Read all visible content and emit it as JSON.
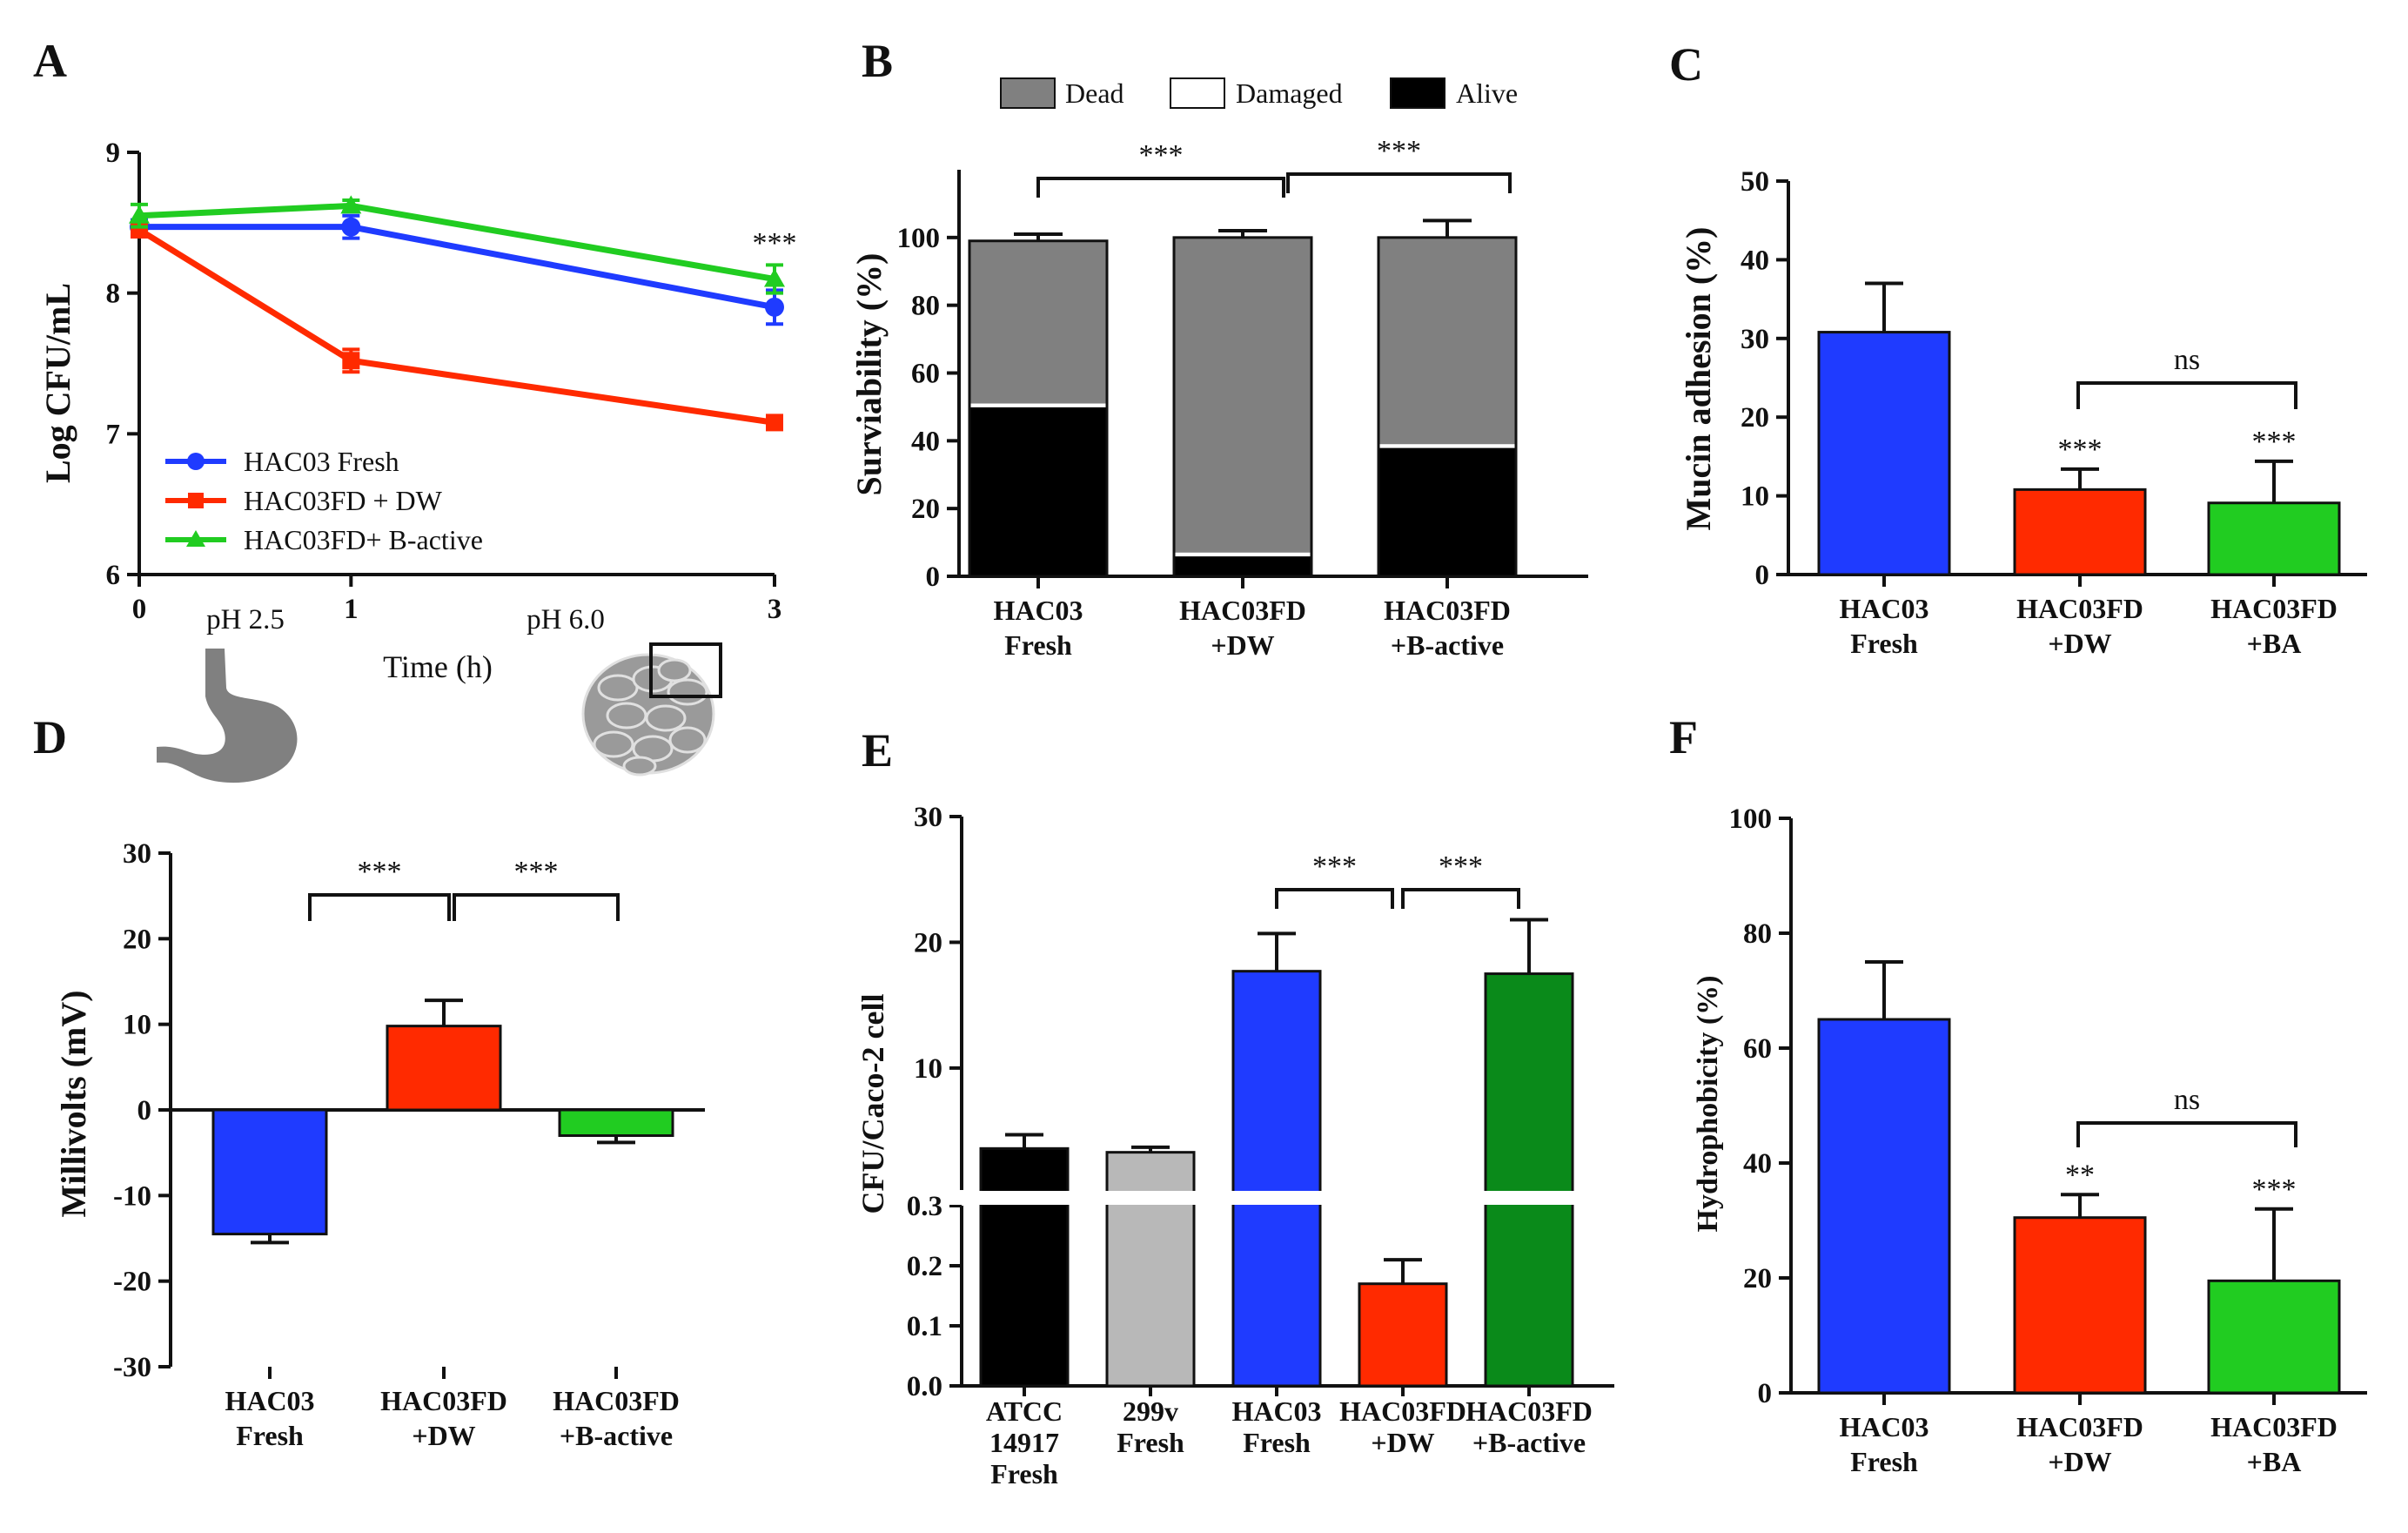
{
  "panels": {
    "A": {
      "letter": "A"
    },
    "B": {
      "letter": "B"
    },
    "C": {
      "letter": "C"
    },
    "D": {
      "letter": "D"
    },
    "E": {
      "letter": "E"
    },
    "F": {
      "letter": "F"
    }
  },
  "colors": {
    "blue": "#1f3bff",
    "red": "#ff2a00",
    "green": "#21cc21",
    "darkgreen": "#0a8a1a",
    "black": "#000000",
    "grey": "#808080",
    "lightgrey": "#b8b8b8",
    "organ": "#808080"
  },
  "chart_data": [
    {
      "id": "A",
      "type": "line",
      "ylabel": "Log CFU/mL",
      "xlabel": "Time (h)",
      "ylim": [
        6,
        9
      ],
      "yticks": [
        "6",
        "7",
        "8",
        "9"
      ],
      "x": [
        0,
        1,
        3
      ],
      "xticks": [
        "0",
        "1",
        "3"
      ],
      "annotations": {
        "ph1": "pH 2.5",
        "ph2": "pH 6.0",
        "sig": "***"
      },
      "series": [
        {
          "name": "HAC03 Fresh",
          "color": "#1f3bff",
          "marker": "circle",
          "values": [
            8.47,
            8.47,
            7.9
          ],
          "err": [
            0.05,
            0.08,
            0.12
          ]
        },
        {
          "name": "HAC03FD + DW",
          "color": "#ff2a00",
          "marker": "square",
          "values": [
            8.45,
            7.52,
            7.08
          ],
          "err": [
            0.05,
            0.08,
            0.03
          ]
        },
        {
          "name": "HAC03FD+ B-active",
          "color": "#21cc21",
          "marker": "triangle",
          "values": [
            8.55,
            8.62,
            8.1
          ],
          "err": [
            0.08,
            0.04,
            0.1
          ]
        }
      ]
    },
    {
      "id": "B",
      "type": "bar",
      "ylabel": "Surviability (%)",
      "ylim": [
        0,
        120
      ],
      "yticks": [
        "0",
        "20",
        "40",
        "60",
        "80",
        "100"
      ],
      "categories": [
        [
          "HAC03",
          "Fresh"
        ],
        [
          "HAC03FD",
          "+DW"
        ],
        [
          "HAC03FD",
          "+B-active"
        ]
      ],
      "legend": [
        "Dead",
        "Damaged",
        "Alive"
      ],
      "series": [
        {
          "name": "Alive",
          "color": "#000000",
          "values": [
            50,
            6,
            38
          ]
        },
        {
          "name": "Damaged",
          "color": "#ffffff",
          "values": [
            1,
            1,
            1
          ]
        },
        {
          "name": "Dead",
          "color": "#808080",
          "values": [
            48,
            93,
            61
          ]
        }
      ],
      "err": [
        2,
        2,
        5
      ],
      "brackets": [
        {
          "from": 0,
          "to": 1,
          "label": "***"
        },
        {
          "from": 1,
          "to": 2,
          "label": "***"
        }
      ]
    },
    {
      "id": "C",
      "type": "bar",
      "ylabel": "Mucin adhesion (%)",
      "ylim": [
        0,
        50
      ],
      "yticks": [
        "0",
        "10",
        "20",
        "30",
        "40",
        "50"
      ],
      "categories": [
        [
          "HAC03",
          "Fresh"
        ],
        [
          "HAC03FD",
          "+DW"
        ],
        [
          "HAC03FD",
          "+BA"
        ]
      ],
      "values": [
        30.8,
        10.8,
        9.1
      ],
      "err": [
        6.2,
        2.6,
        5.3
      ],
      "colors": [
        "#1f3bff",
        "#ff2a00",
        "#21cc21"
      ],
      "stars": [
        "",
        "***",
        "***"
      ],
      "brackets": [
        {
          "from": 1,
          "to": 2,
          "label": "ns"
        }
      ]
    },
    {
      "id": "D",
      "type": "bar",
      "ylabel": "Millivolts (mV)",
      "ylim": [
        -30,
        30
      ],
      "yticks": [
        "-30",
        "-20",
        "-10",
        "0",
        "10",
        "20",
        "30"
      ],
      "categories": [
        [
          "HAC03",
          "Fresh"
        ],
        [
          "HAC03FD",
          "+DW"
        ],
        [
          "HAC03FD",
          "+B-active"
        ]
      ],
      "values": [
        -14.5,
        9.8,
        -3.0
      ],
      "err": [
        1.0,
        3.0,
        0.8
      ],
      "colors": [
        "#1f3bff",
        "#ff2a00",
        "#21cc21"
      ],
      "brackets": [
        {
          "from": 0,
          "to": 1,
          "label": "***"
        },
        {
          "from": 1,
          "to": 2,
          "label": "***"
        }
      ]
    },
    {
      "id": "E",
      "type": "bar",
      "ylabel": "CFU/Caco-2 cell",
      "broken_axis": {
        "lower": [
          0,
          0.3
        ],
        "upper": [
          0.3,
          30
        ]
      },
      "yticks_lower": [
        "0.0",
        "0.1",
        "0.2",
        "0.3"
      ],
      "yticks_upper": [
        "10",
        "20",
        "30"
      ],
      "categories": [
        [
          "ATCC",
          "14917",
          "Fresh"
        ],
        [
          "299v",
          "Fresh"
        ],
        [
          "HAC03",
          "Fresh"
        ],
        [
          "HAC03FD",
          "+DW"
        ],
        [
          "HAC03FD",
          "+B-active"
        ]
      ],
      "values": [
        3.6,
        3.3,
        17.7,
        0.17,
        17.5
      ],
      "err": [
        1.1,
        0.4,
        3.0,
        0.04,
        4.3
      ],
      "colors": [
        "#000000",
        "#b8b8b8",
        "#1f3bff",
        "#ff2a00",
        "#0a8a1a"
      ],
      "brackets": [
        {
          "from": 2,
          "to": 3,
          "label": "***"
        },
        {
          "from": 3,
          "to": 4,
          "label": "***"
        }
      ]
    },
    {
      "id": "F",
      "type": "bar",
      "ylabel": "Hydrophobicity (%)",
      "ylim": [
        0,
        100
      ],
      "yticks": [
        "0",
        "20",
        "40",
        "60",
        "80",
        "100"
      ],
      "categories": [
        [
          "HAC03",
          "Fresh"
        ],
        [
          "HAC03FD",
          "+DW"
        ],
        [
          "HAC03FD",
          "+BA"
        ]
      ],
      "values": [
        65,
        30.5,
        19.5
      ],
      "err": [
        10,
        4,
        12.5
      ],
      "colors": [
        "#1f3bff",
        "#ff2a00",
        "#21cc21"
      ],
      "stars": [
        "",
        "**",
        "***"
      ],
      "brackets": [
        {
          "from": 1,
          "to": 2,
          "label": "ns"
        }
      ]
    }
  ]
}
